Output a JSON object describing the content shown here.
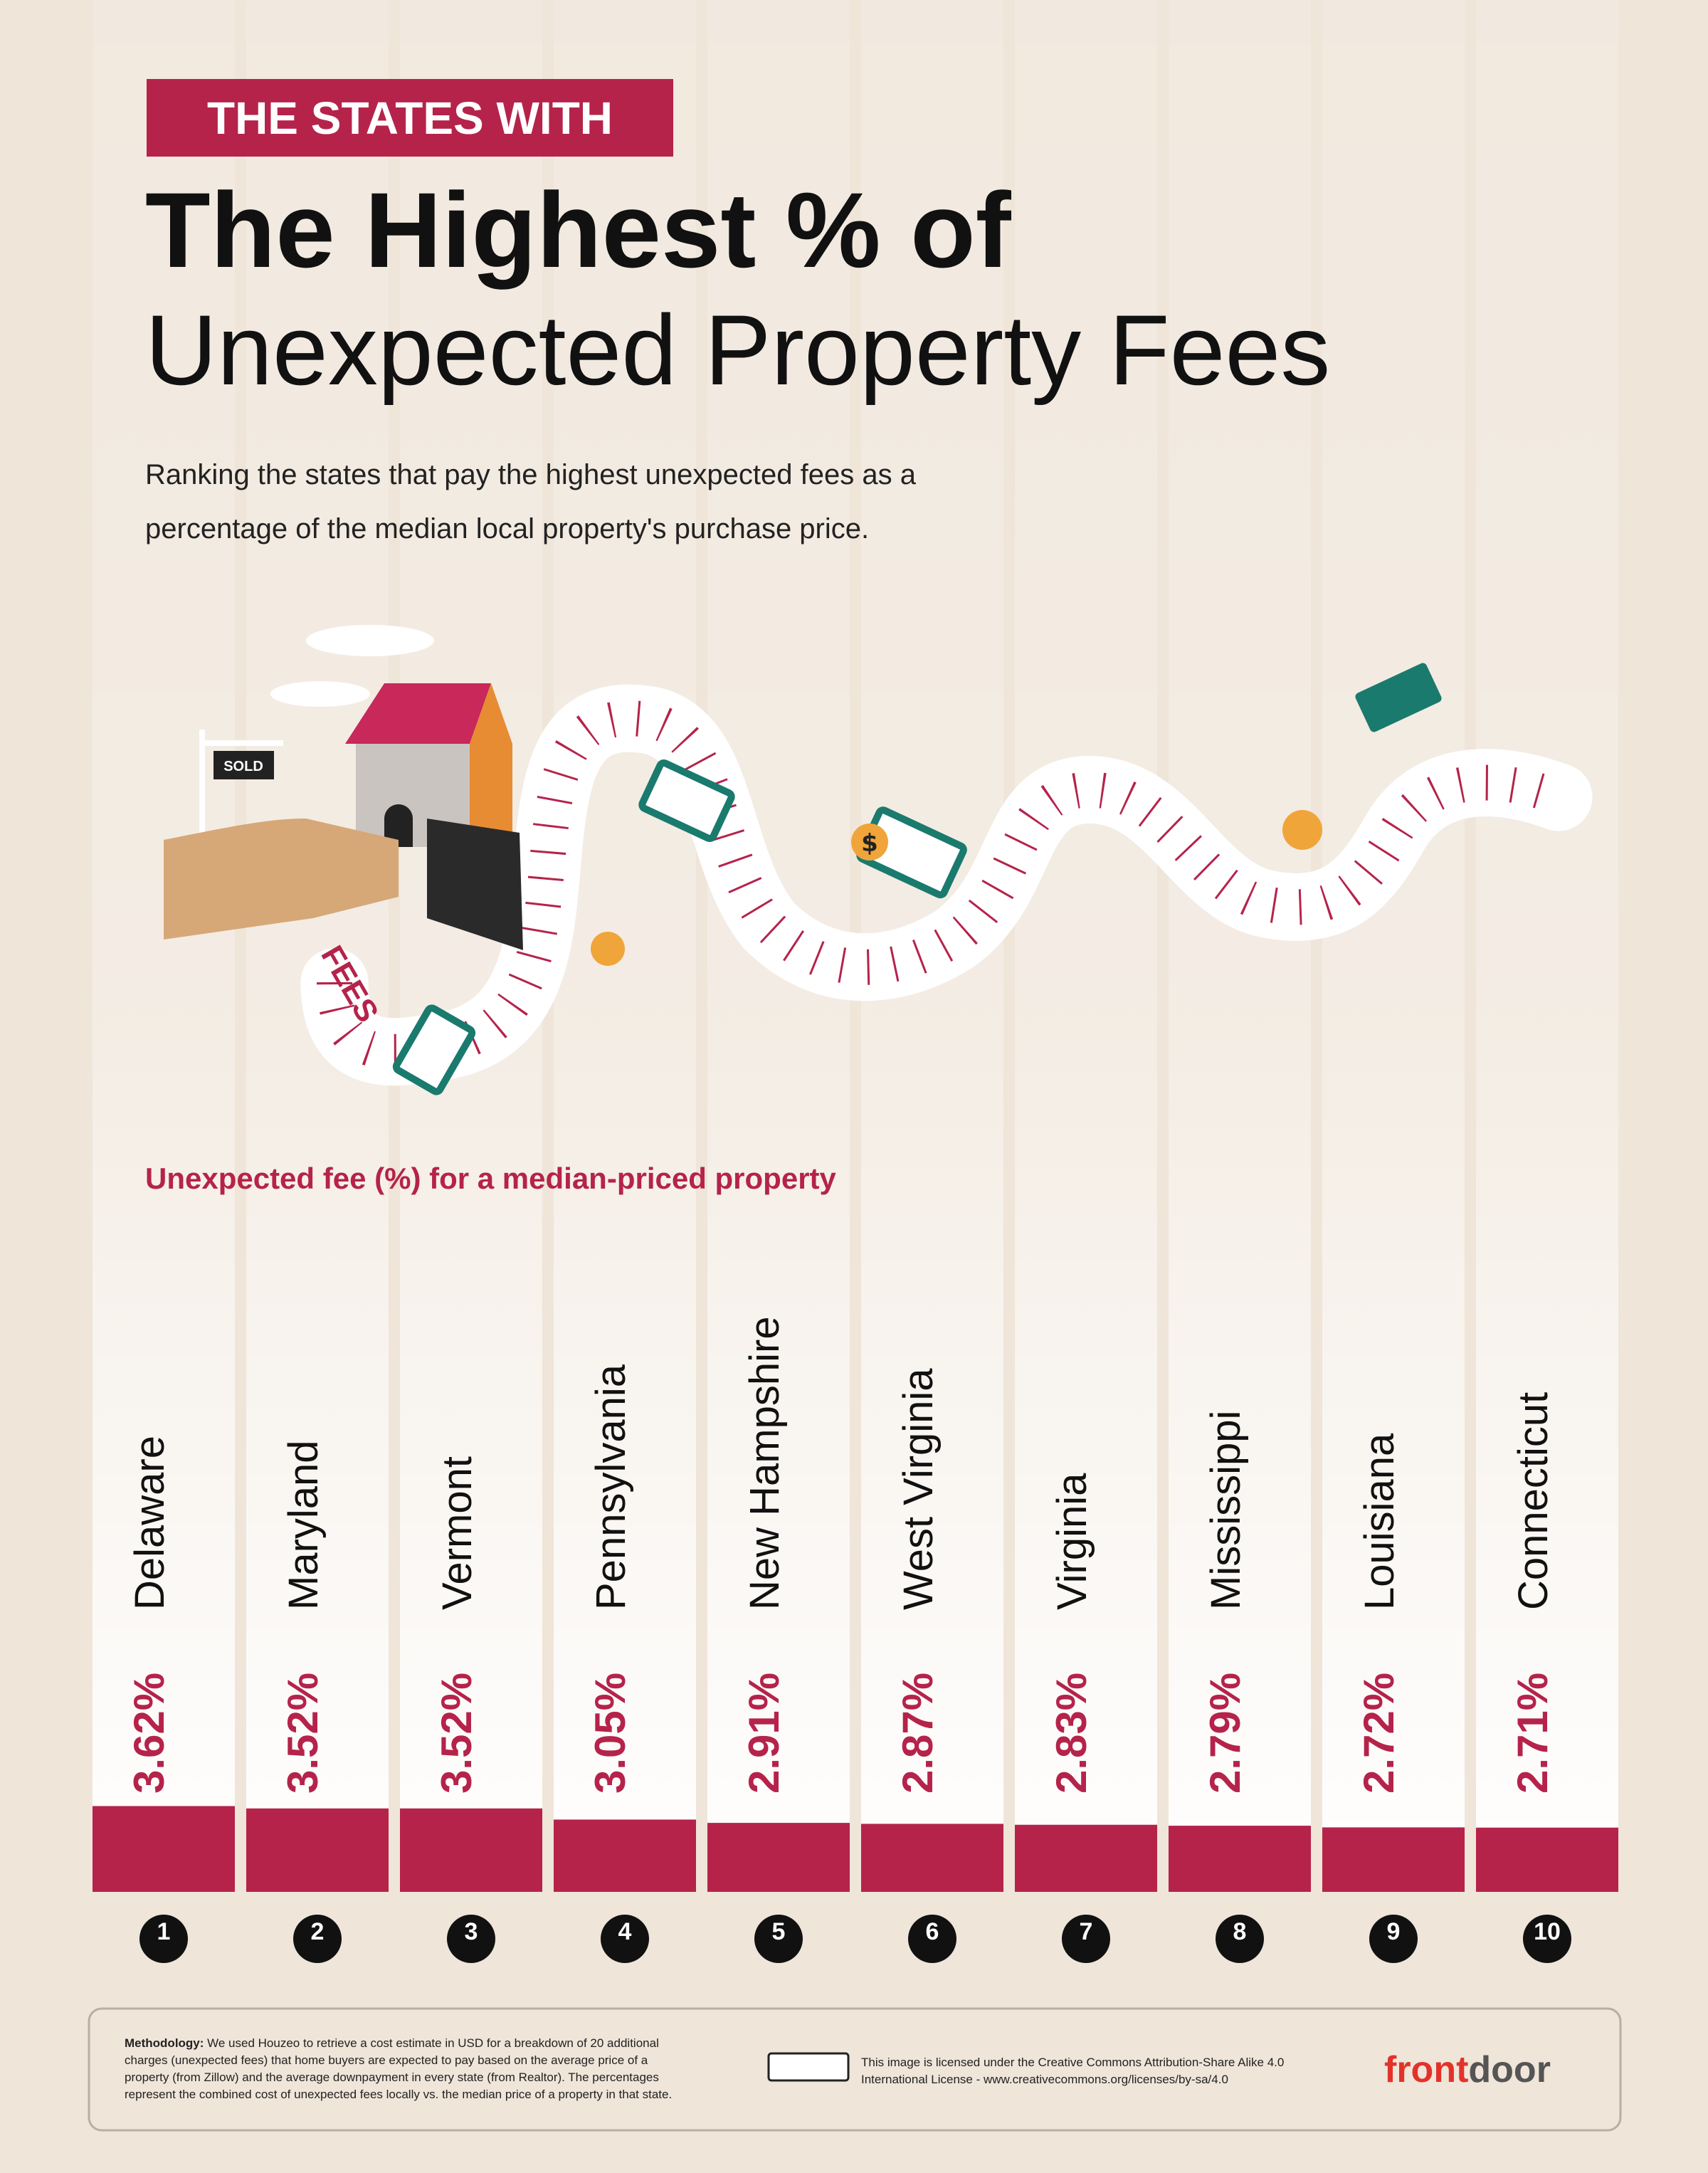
{
  "chart_data": {
    "type": "bar",
    "badge": "THE STATES WITH",
    "title": "The Highest % of",
    "title_line2": "Unexpected Property Fees",
    "subtitle": [
      "Ranking the states that pay the highest unexpected fees as a",
      "percentage of the median local property's purchase price."
    ],
    "y_label": "Unexpected fee (%) for a median-priced property",
    "categories": [
      "Delaware",
      "Maryland",
      "Vermont",
      "Pennsylvania",
      "New Hampshire",
      "West Virginia",
      "Virginia",
      "Mississippi",
      "Louisiana",
      "Connecticut"
    ],
    "values": [
      3.62,
      3.52,
      3.52,
      3.05,
      2.91,
      2.87,
      2.83,
      2.79,
      2.72,
      2.71
    ],
    "value_labels": [
      "3.62%",
      "3.52%",
      "3.52%",
      "3.05%",
      "2.91%",
      "2.87%",
      "2.83%",
      "2.79%",
      "2.72%",
      "2.71%"
    ],
    "ranks": [
      1,
      2,
      3,
      4,
      5,
      6,
      7,
      8,
      9,
      10
    ],
    "color": "#b5234a"
  },
  "illustration": {
    "sign": "SOLD",
    "road": "FEES",
    "coin": "$"
  },
  "footer": {
    "methodology_label": "Methodology:",
    "methodology": [
      " We used Houzeo to retrieve a cost estimate in USD for a breakdown of 20 additional",
      "charges (unexpected fees) that home buyers are expected to pay based on the average price of a",
      "property (from Zillow) and the average downpayment in every state (from Realtor). The percentages",
      "represent the combined cost of unexpected fees locally vs. the median price of a property in that state."
    ],
    "license": [
      "This image is licensed under the Creative Commons Attribution-Share Alike 4.0",
      "International License - www.creativecommons.org/licenses/by-sa/4.0"
    ],
    "brand": [
      "front",
      "door"
    ]
  }
}
